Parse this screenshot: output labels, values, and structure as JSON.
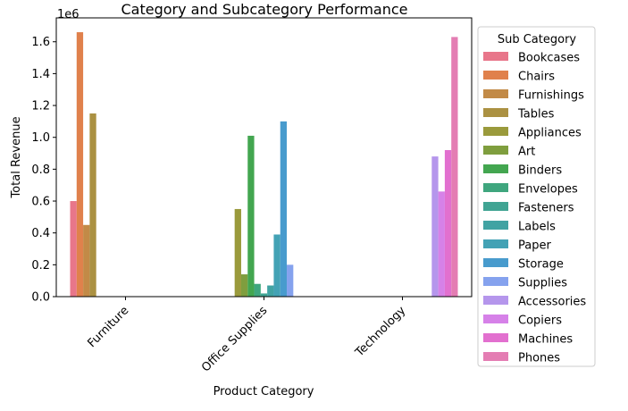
{
  "chart_data": {
    "type": "bar",
    "title": "Category and Subcategory Performance",
    "xlabel": "Product Category",
    "ylabel": "Total Revenue",
    "y_offset_label": "1e6",
    "ylim": [
      0,
      1.75
    ],
    "yticks": [
      "0.0",
      "0.2",
      "0.4",
      "0.6",
      "0.8",
      "1.0",
      "1.2",
      "1.4",
      "1.6"
    ],
    "categories": [
      "Furniture",
      "Office Supplies",
      "Technology"
    ],
    "legend": {
      "title": "Sub Category",
      "placement": "right-outside"
    },
    "grid": false,
    "series": [
      {
        "name": "Bookcases",
        "color": "#e8768a",
        "values": [
          0.6,
          null,
          null
        ]
      },
      {
        "name": "Chairs",
        "color": "#e0814c",
        "values": [
          1.66,
          null,
          null
        ]
      },
      {
        "name": "Furnishings",
        "color": "#c28a47",
        "values": [
          0.45,
          null,
          null
        ]
      },
      {
        "name": "Tables",
        "color": "#ab9142",
        "values": [
          1.15,
          null,
          null
        ]
      },
      {
        "name": "Appliances",
        "color": "#9a9a3c",
        "values": [
          null,
          0.55,
          null
        ]
      },
      {
        "name": "Art",
        "color": "#7f9e3e",
        "values": [
          null,
          0.14,
          null
        ]
      },
      {
        "name": "Binders",
        "color": "#43a650",
        "values": [
          null,
          1.01,
          null
        ]
      },
      {
        "name": "Envelopes",
        "color": "#3fa67e",
        "values": [
          null,
          0.08,
          null
        ]
      },
      {
        "name": "Fasteners",
        "color": "#40a493",
        "values": [
          null,
          0.02,
          null
        ]
      },
      {
        "name": "Labels",
        "color": "#41a3a3",
        "values": [
          null,
          0.07,
          null
        ]
      },
      {
        "name": "Paper",
        "color": "#43a2b5",
        "values": [
          null,
          0.39,
          null
        ]
      },
      {
        "name": "Storage",
        "color": "#489bcd",
        "values": [
          null,
          1.1,
          null
        ]
      },
      {
        "name": "Supplies",
        "color": "#85a2ee",
        "values": [
          null,
          0.2,
          null
        ]
      },
      {
        "name": "Accessories",
        "color": "#b596ec",
        "values": [
          null,
          null,
          0.88
        ]
      },
      {
        "name": "Copiers",
        "color": "#d681e8",
        "values": [
          null,
          null,
          0.66
        ]
      },
      {
        "name": "Machines",
        "color": "#e270cf",
        "values": [
          null,
          null,
          0.92
        ]
      },
      {
        "name": "Phones",
        "color": "#e47db3",
        "values": [
          null,
          null,
          1.63
        ]
      }
    ]
  }
}
